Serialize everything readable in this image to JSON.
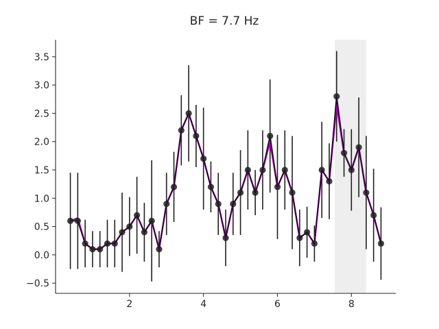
{
  "chart_data": {
    "type": "line",
    "title": "BF = 7.7 Hz",
    "xlabel": "",
    "ylabel": "",
    "xlim": [
      0.0,
      9.2
    ],
    "ylim": [
      -0.68,
      3.8
    ],
    "xticks": [
      2,
      4,
      6,
      8
    ],
    "yticks": [
      -0.5,
      0.0,
      0.5,
      1.0,
      1.5,
      2.0,
      2.5,
      3.0,
      3.5
    ],
    "xtick_labels": [
      "2",
      "4",
      "6",
      "8"
    ],
    "ytick_labels": [
      "−0.5",
      "0.0",
      "0.5",
      "1.0",
      "1.5",
      "2.0",
      "2.5",
      "3.0",
      "3.5"
    ],
    "shaded_region": {
      "x0": 7.55,
      "x1": 8.4,
      "color": "#eeeeee"
    },
    "grid": false,
    "colors": {
      "fit_line": "#b000b5",
      "data_line": "#2a0033",
      "marker": "#1f1f1f",
      "errorbar": "#1f1f1f"
    },
    "series": [
      {
        "x": [
          0.4,
          0.6,
          0.8,
          1.0,
          1.2,
          1.4,
          1.6,
          1.8,
          2.0,
          2.2,
          2.4,
          2.6,
          2.8,
          3.0,
          3.2,
          3.4,
          3.6,
          3.8,
          4.0,
          4.2,
          4.4,
          4.6,
          4.8,
          5.0,
          5.2,
          5.4,
          5.6,
          5.8,
          6.0,
          6.2,
          6.4,
          6.6,
          6.8,
          7.0,
          7.2,
          7.4,
          7.6,
          7.8,
          8.0,
          8.2,
          8.4,
          8.6,
          8.8
        ],
        "y": [
          0.6,
          0.6,
          0.2,
          0.1,
          0.1,
          0.2,
          0.2,
          0.4,
          0.5,
          0.7,
          0.4,
          0.6,
          0.1,
          0.9,
          1.2,
          2.2,
          2.5,
          2.1,
          1.7,
          1.2,
          0.9,
          0.3,
          0.9,
          1.1,
          1.5,
          1.1,
          1.5,
          2.1,
          1.2,
          1.5,
          1.1,
          0.3,
          0.4,
          0.2,
          1.5,
          1.3,
          2.8,
          1.8,
          1.5,
          1.9,
          1.1,
          0.7,
          0.2
        ],
        "err": [
          0.85,
          0.85,
          0.42,
          0.32,
          0.32,
          0.42,
          0.42,
          0.7,
          0.52,
          0.68,
          0.52,
          1.07,
          0.32,
          0.55,
          0.62,
          0.62,
          0.85,
          0.55,
          0.9,
          0.45,
          0.55,
          0.5,
          0.55,
          0.75,
          0.7,
          0.4,
          0.7,
          1.0,
          0.92,
          0.7,
          1.0,
          0.5,
          0.45,
          0.32,
          0.85,
          0.67,
          0.8,
          0.42,
          0.72,
          0.88,
          1.0,
          0.82,
          0.64
        ]
      }
    ],
    "fit_y": [
      0.6,
      0.65,
      0.2,
      0.1,
      0.1,
      0.2,
      0.2,
      0.4,
      0.5,
      0.7,
      0.4,
      0.6,
      0.1,
      0.9,
      1.2,
      2.2,
      2.5,
      2.1,
      1.7,
      1.2,
      0.9,
      0.3,
      0.9,
      1.1,
      1.5,
      1.1,
      1.5,
      2.0,
      1.2,
      1.5,
      1.1,
      0.3,
      0.4,
      0.2,
      1.5,
      1.3,
      2.65,
      1.8,
      1.5,
      1.9,
      1.1,
      0.7,
      0.2
    ]
  }
}
